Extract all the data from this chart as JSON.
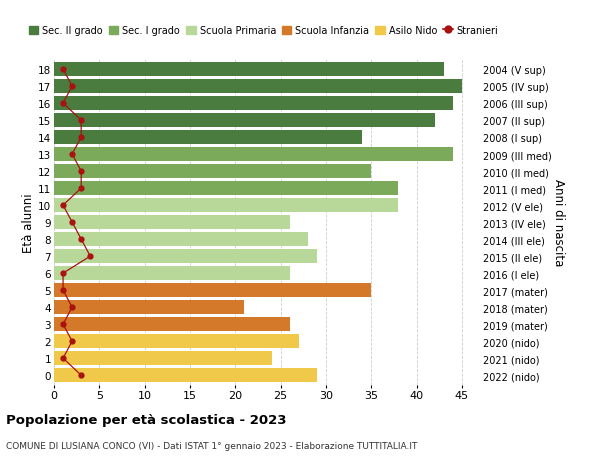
{
  "ages": [
    18,
    17,
    16,
    15,
    14,
    13,
    12,
    11,
    10,
    9,
    8,
    7,
    6,
    5,
    4,
    3,
    2,
    1,
    0
  ],
  "labels_right": [
    "2004 (V sup)",
    "2005 (IV sup)",
    "2006 (III sup)",
    "2007 (II sup)",
    "2008 (I sup)",
    "2009 (III med)",
    "2010 (II med)",
    "2011 (I med)",
    "2012 (V ele)",
    "2013 (IV ele)",
    "2014 (III ele)",
    "2015 (II ele)",
    "2016 (I ele)",
    "2017 (mater)",
    "2018 (mater)",
    "2019 (mater)",
    "2020 (nido)",
    "2021 (nido)",
    "2022 (nido)"
  ],
  "bar_values": [
    43,
    45,
    44,
    42,
    34,
    44,
    35,
    38,
    38,
    26,
    28,
    29,
    26,
    35,
    21,
    26,
    27,
    24,
    29
  ],
  "bar_colors": [
    "#4a7c3f",
    "#4a7c3f",
    "#4a7c3f",
    "#4a7c3f",
    "#4a7c3f",
    "#7aaa5a",
    "#7aaa5a",
    "#7aaa5a",
    "#b8d89a",
    "#b8d89a",
    "#b8d89a",
    "#b8d89a",
    "#b8d89a",
    "#d4782a",
    "#d4782a",
    "#d4782a",
    "#f0c84a",
    "#f0c84a",
    "#f0c84a"
  ],
  "stranieri_values": [
    1,
    2,
    1,
    3,
    3,
    2,
    3,
    3,
    1,
    2,
    3,
    4,
    1,
    1,
    2,
    1,
    2,
    1,
    3
  ],
  "xlim": [
    0,
    47
  ],
  "xticks": [
    0,
    5,
    10,
    15,
    20,
    25,
    30,
    35,
    40,
    45
  ],
  "ylabel_left": "Età alunni",
  "ylabel_right": "Anni di nascita",
  "title": "Popolazione per età scolastica - 2023",
  "subtitle": "COMUNE DI LUSIANA CONCO (VI) - Dati ISTAT 1° gennaio 2023 - Elaborazione TUTTITALIA.IT",
  "legend_items": [
    {
      "label": "Sec. II grado",
      "color": "#4a7c3f"
    },
    {
      "label": "Sec. I grado",
      "color": "#7aaa5a"
    },
    {
      "label": "Scuola Primaria",
      "color": "#b8d89a"
    },
    {
      "label": "Scuola Infanzia",
      "color": "#d4782a"
    },
    {
      "label": "Asilo Nido",
      "color": "#f0c84a"
    },
    {
      "label": "Stranieri",
      "color": "#aa1111"
    }
  ],
  "bg_color": "#ffffff",
  "grid_color": "#cccccc"
}
